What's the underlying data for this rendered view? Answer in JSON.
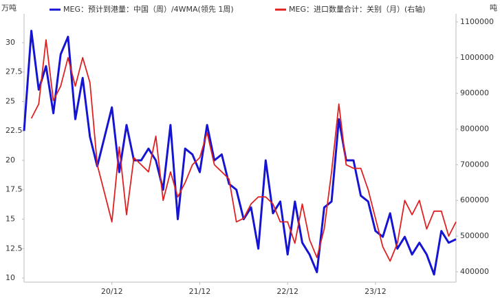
{
  "chart_data": {
    "type": "line",
    "y_unit": "万吨",
    "y2_unit": "吨",
    "categories": [
      null,
      null,
      null,
      null,
      null,
      null,
      null,
      null,
      null,
      null,
      null,
      null,
      "20/12",
      null,
      null,
      null,
      null,
      null,
      null,
      null,
      null,
      null,
      null,
      null,
      "21/12",
      null,
      null,
      null,
      null,
      null,
      null,
      null,
      null,
      null,
      null,
      null,
      "22/12",
      null,
      null,
      null,
      null,
      null,
      null,
      null,
      null,
      null,
      null,
      null,
      "23/12",
      null,
      null,
      null,
      null,
      null,
      null,
      null,
      null,
      null,
      null,
      null
    ],
    "series": [
      {
        "name": "MEG：预计到港量：中国（周）/4WMA(领先 1周)",
        "color": "#1414d2",
        "values": [
          22.5,
          31,
          26,
          28,
          24,
          29,
          30.5,
          23.5,
          27,
          22,
          19.5,
          22,
          24.5,
          19,
          23,
          20,
          20,
          21,
          20,
          17.5,
          23,
          15,
          21,
          20.5,
          19,
          23,
          20,
          20.5,
          18,
          17.5,
          15,
          16,
          12.5,
          20,
          15.5,
          16.5,
          12,
          16.5,
          13,
          12,
          10.5,
          16,
          16.5,
          23.5,
          20,
          20,
          17,
          16.5,
          14,
          13.5,
          15.5,
          12.5,
          13.5,
          12,
          13,
          12,
          10.3,
          14,
          13,
          13.3
        ]
      },
      {
        "name": "MEG：进口数量合计：关别（月）(右轴)",
        "color": "#e02020",
        "axis": "y2",
        "values": [
          null,
          830000,
          870000,
          1050000,
          880000,
          920000,
          1000000,
          920000,
          1000000,
          930000,
          700000,
          620000,
          540000,
          750000,
          560000,
          720000,
          700000,
          680000,
          780000,
          600000,
          680000,
          610000,
          650000,
          700000,
          720000,
          790000,
          700000,
          680000,
          660000,
          540000,
          550000,
          590000,
          610000,
          610000,
          590000,
          540000,
          540000,
          480000,
          590000,
          490000,
          440000,
          520000,
          680000,
          870000,
          700000,
          690000,
          690000,
          630000,
          550000,
          470000,
          430000,
          480000,
          600000,
          560000,
          600000,
          520000,
          570000,
          570000,
          500000,
          540000
        ]
      }
    ],
    "ylim": [
      9.65,
      32.45
    ],
    "yticks": [
      10,
      12.5,
      15,
      17.5,
      20,
      22.5,
      25,
      27.5,
      30
    ],
    "y2lim": [
      371000,
      1123000
    ],
    "y2ticks": [
      400000,
      500000,
      600000,
      700000,
      800000,
      900000,
      1000000,
      1100000
    ],
    "grid": false
  }
}
